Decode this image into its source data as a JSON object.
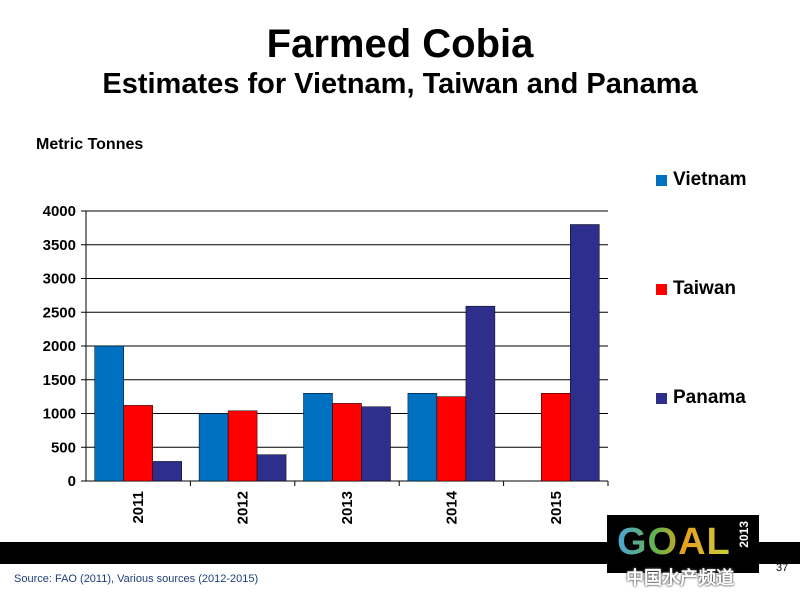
{
  "slide": {
    "title": "Farmed Cobia",
    "subtitle": "Estimates for Vietnam, Taiwan and Panama",
    "unit_label": "Metric Tonnes",
    "source": "Source: FAO (2011), Various sources (2012-2015)",
    "page_number": "37",
    "logo_text": "GOAL",
    "logo_year": "2013",
    "watermark": "中国水产频道"
  },
  "chart_data": {
    "type": "bar",
    "categories": [
      "2011",
      "2012",
      "2013",
      "2014",
      "2015"
    ],
    "series": [
      {
        "name": "Vietnam",
        "color": "#0070C0",
        "values": [
          2000,
          1000,
          1300,
          1300,
          null
        ]
      },
      {
        "name": "Taiwan",
        "color": "#FF0000",
        "values": [
          1120,
          1040,
          1150,
          1250,
          1300
        ]
      },
      {
        "name": "Panama",
        "color": "#2E2E8C",
        "values": [
          290,
          390,
          1100,
          2590,
          3800
        ]
      }
    ],
    "ylim": [
      0,
      4000
    ],
    "yticks": [
      0,
      500,
      1000,
      1500,
      2000,
      2500,
      3000,
      3500,
      4000
    ],
    "ylabel": "Metric Tonnes",
    "grid": true,
    "legend_position": "right"
  }
}
